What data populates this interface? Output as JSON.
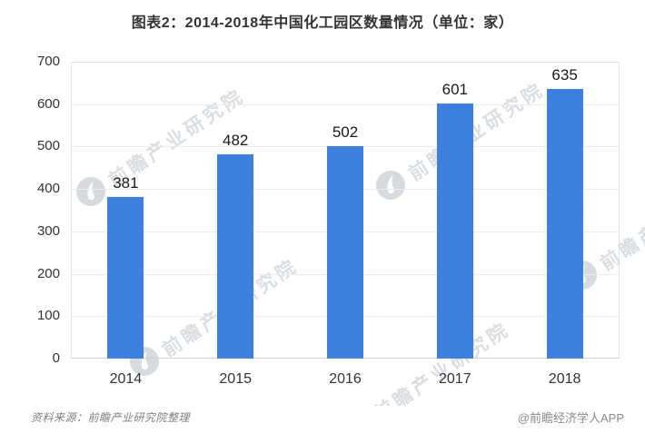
{
  "title": "图表2：2014-2018年中国化工园区数量情况（单位：家）",
  "chart_data": {
    "type": "bar",
    "categories": [
      "2014",
      "2015",
      "2016",
      "2017",
      "2018"
    ],
    "values": [
      381,
      482,
      502,
      601,
      635
    ],
    "title": "图表2：2014-2018年中国化工园区数量情况（单位：家）",
    "xlabel": "",
    "ylabel": "",
    "ylim": [
      0,
      700
    ],
    "ytick_step": 100,
    "grid": true,
    "legend": false,
    "bar_color": "#3E80DE"
  },
  "colors": {
    "bar": "#3E80DE",
    "title_text": "#333333",
    "axis_text": "#333333",
    "value_label_text": "#1A1A1A",
    "gridline": "#ECECEC",
    "axis_line": "#D2D2D2",
    "watermark": "#9EA8B6",
    "footer_text": "#808080"
  },
  "watermark": {
    "text": "前瞻产业研究院",
    "logo": "qianzhan-bird-logo"
  },
  "footer": {
    "source": "资料来源：前瞻产业研究院整理",
    "credit": "@前瞻经济学人APP"
  }
}
